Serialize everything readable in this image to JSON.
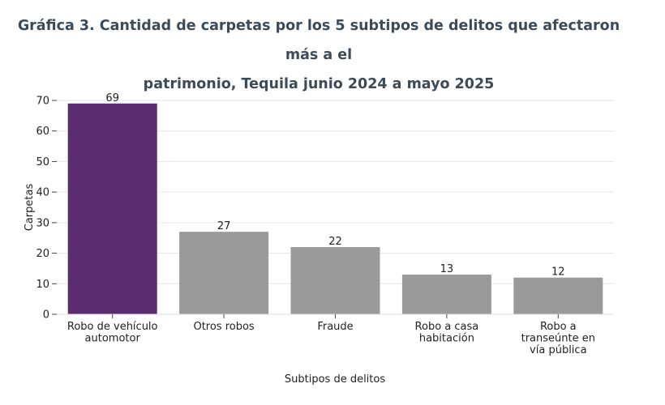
{
  "chart_data": {
    "type": "bar",
    "title_line1": "Gráfica 3. Cantidad de carpetas por los 5 subtipos de delitos que afectaron más a el",
    "title_line2": "patrimonio, Tequila junio 2024 a mayo 2025",
    "xlabel": "Subtipos de delitos",
    "ylabel": "Carpetas",
    "ylim": [
      0,
      70
    ],
    "yticks": [
      0,
      10,
      20,
      30,
      40,
      50,
      60,
      70
    ],
    "grid": true,
    "categories": [
      [
        "Robo de vehículo",
        "automotor"
      ],
      [
        "Otros robos"
      ],
      [
        "Fraude"
      ],
      [
        "Robo a casa",
        "habitación"
      ],
      [
        "Robo a",
        "transeúnte en",
        "vía pública"
      ]
    ],
    "values": [
      69,
      27,
      22,
      13,
      12
    ],
    "colors": [
      "#5b2c6f",
      "#9a9a9a",
      "#9a9a9a",
      "#9a9a9a",
      "#9a9a9a"
    ]
  }
}
